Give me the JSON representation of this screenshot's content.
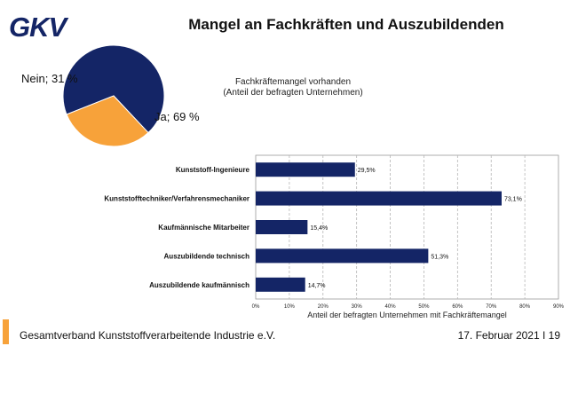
{
  "brand": {
    "logo_text": "GKV",
    "colors": {
      "navy": "#142566",
      "orange": "#F7A23A"
    }
  },
  "title": "Mangel an Fachkräften und Auszubildenden",
  "chart_data": [
    {
      "type": "pie",
      "title": "Fachkräftemangel vorhanden",
      "subtitle": "(Anteil der befragten Unternehmen)",
      "slices": [
        {
          "label": "Ja; 69 %",
          "value": 69,
          "color": "#142566"
        },
        {
          "label": "Nein; 31 %",
          "value": 31,
          "color": "#F7A23A"
        }
      ]
    },
    {
      "type": "bar",
      "orientation": "horizontal",
      "categories": [
        "Kunststoff-Ingenieure",
        "Kunststofftechniker/Verfahrensmechaniker",
        "Kaufmännische Mitarbeiter",
        "Auszubildende technisch",
        "Auszubildende kaufmännisch"
      ],
      "values": [
        29.5,
        73.1,
        15.4,
        51.3,
        14.7
      ],
      "data_labels": [
        "29,5%",
        "73,1%",
        "15,4%",
        "51,3%",
        "14,7%"
      ],
      "xlabel": "Anteil der befragten Unternehmen mit Fachkräftemangel",
      "xlim": [
        0,
        90
      ],
      "xticks": [
        "0%",
        "10%",
        "20%",
        "30%",
        "40%",
        "50%",
        "60%",
        "70%",
        "80%",
        "90%"
      ],
      "grid": true,
      "color": "#142566"
    }
  ],
  "footer": {
    "organization": "Gesamtverband Kunststoffverarbeitende Industrie e.V.",
    "date_page": "17. Februar 2021 I 19"
  }
}
